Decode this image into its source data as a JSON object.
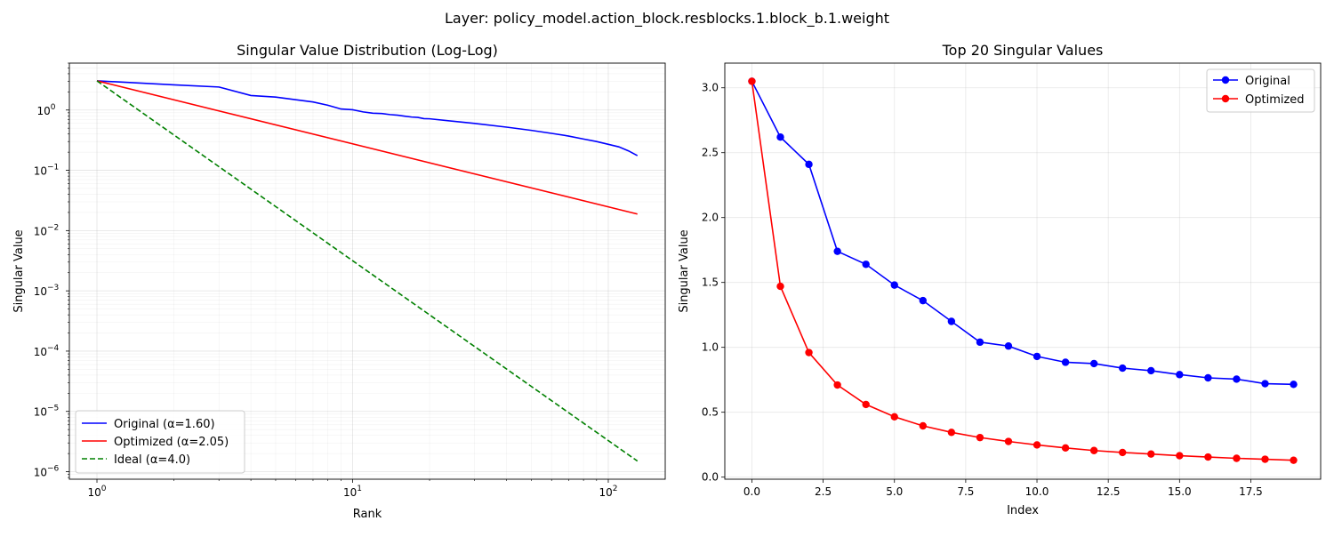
{
  "figure": {
    "suptitle": "Layer: policy_model.action_block.resblocks.1.block_b.1.weight"
  },
  "chart_data": [
    {
      "type": "line",
      "title": "Singular Value Distribution (Log-Log)",
      "xlabel": "Rank",
      "ylabel": "Singular Value",
      "xscale": "log",
      "yscale": "log",
      "xlim": [
        0.78,
        167
      ],
      "ylim": [
        7.5e-07,
        6.0
      ],
      "xticks": [
        {
          "value": 1,
          "base": "10",
          "exp": "0"
        },
        {
          "value": 10,
          "base": "10",
          "exp": "1"
        },
        {
          "value": 100,
          "base": "10",
          "exp": "2"
        }
      ],
      "yticks": [
        {
          "value": 1e-06,
          "base": "10",
          "exp": "−6"
        },
        {
          "value": 1e-05,
          "base": "10",
          "exp": "−5"
        },
        {
          "value": 0.0001,
          "base": "10",
          "exp": "−4"
        },
        {
          "value": 0.001,
          "base": "10",
          "exp": "−3"
        },
        {
          "value": 0.01,
          "base": "10",
          "exp": "−2"
        },
        {
          "value": 0.1,
          "base": "10",
          "exp": "−1"
        },
        {
          "value": 1,
          "base": "10",
          "exp": "0"
        }
      ],
      "grid": true,
      "legend_position": "lower-left",
      "series": [
        {
          "name": "Original (α=1.60)",
          "color": "#0000ff",
          "style": "solid",
          "points": [
            [
              1,
              3.05
            ],
            [
              2,
              2.62
            ],
            [
              3,
              2.41
            ],
            [
              4,
              1.74
            ],
            [
              5,
              1.64
            ],
            [
              6,
              1.48
            ],
            [
              7,
              1.36
            ],
            [
              8,
              1.2
            ],
            [
              9,
              1.04
            ],
            [
              10,
              1.01
            ],
            [
              11,
              0.93
            ],
            [
              12,
              0.885
            ],
            [
              13,
              0.875
            ],
            [
              14,
              0.84
            ],
            [
              15,
              0.82
            ],
            [
              16,
              0.79
            ],
            [
              17,
              0.765
            ],
            [
              18,
              0.755
            ],
            [
              19,
              0.72
            ],
            [
              20,
              0.715
            ],
            [
              30,
              0.6
            ],
            [
              40,
              0.52
            ],
            [
              50,
              0.46
            ],
            [
              60,
              0.41
            ],
            [
              70,
              0.37
            ],
            [
              80,
              0.33
            ],
            [
              90,
              0.3
            ],
            [
              100,
              0.27
            ],
            [
              110,
              0.245
            ],
            [
              120,
              0.21
            ],
            [
              130,
              0.175
            ]
          ]
        },
        {
          "name": "Optimized (α=2.05)",
          "color": "#ff0000",
          "style": "solid",
          "points": [
            [
              1,
              3.05
            ],
            [
              130,
              0.0188
            ]
          ]
        },
        {
          "name": "Ideal (α=4.0)",
          "color": "#008000",
          "style": "dashed",
          "points": [
            [
              1,
              3.05
            ],
            [
              130,
              1.5e-06
            ]
          ]
        }
      ]
    },
    {
      "type": "line",
      "title": "Top 20 Singular Values",
      "xlabel": "Index",
      "ylabel": "Singular Value",
      "xlim": [
        -0.95,
        19.95
      ],
      "ylim": [
        -0.016,
        3.19
      ],
      "xticks": [
        "0.0",
        "2.5",
        "5.0",
        "7.5",
        "10.0",
        "12.5",
        "15.0",
        "17.5"
      ],
      "yticks": [
        "0.0",
        "0.5",
        "1.0",
        "1.5",
        "2.0",
        "2.5",
        "3.0"
      ],
      "grid": true,
      "legend_position": "top-right",
      "series": [
        {
          "name": "Original",
          "color": "#0000ff",
          "marker": "circle",
          "x": [
            0,
            1,
            2,
            3,
            4,
            5,
            6,
            7,
            8,
            9,
            10,
            11,
            12,
            13,
            14,
            15,
            16,
            17,
            18,
            19
          ],
          "values": [
            3.05,
            2.62,
            2.41,
            1.74,
            1.64,
            1.48,
            1.36,
            1.2,
            1.04,
            1.01,
            0.93,
            0.885,
            0.875,
            0.84,
            0.82,
            0.79,
            0.765,
            0.755,
            0.72,
            0.715
          ]
        },
        {
          "name": "Optimized",
          "color": "#ff0000",
          "marker": "circle",
          "x": [
            0,
            1,
            2,
            3,
            4,
            5,
            6,
            7,
            8,
            9,
            10,
            11,
            12,
            13,
            14,
            15,
            16,
            17,
            18,
            19
          ],
          "values": [
            3.05,
            1.47,
            0.96,
            0.71,
            0.56,
            0.465,
            0.395,
            0.345,
            0.305,
            0.275,
            0.248,
            0.225,
            0.205,
            0.19,
            0.178,
            0.165,
            0.155,
            0.145,
            0.138,
            0.13
          ]
        }
      ]
    }
  ]
}
